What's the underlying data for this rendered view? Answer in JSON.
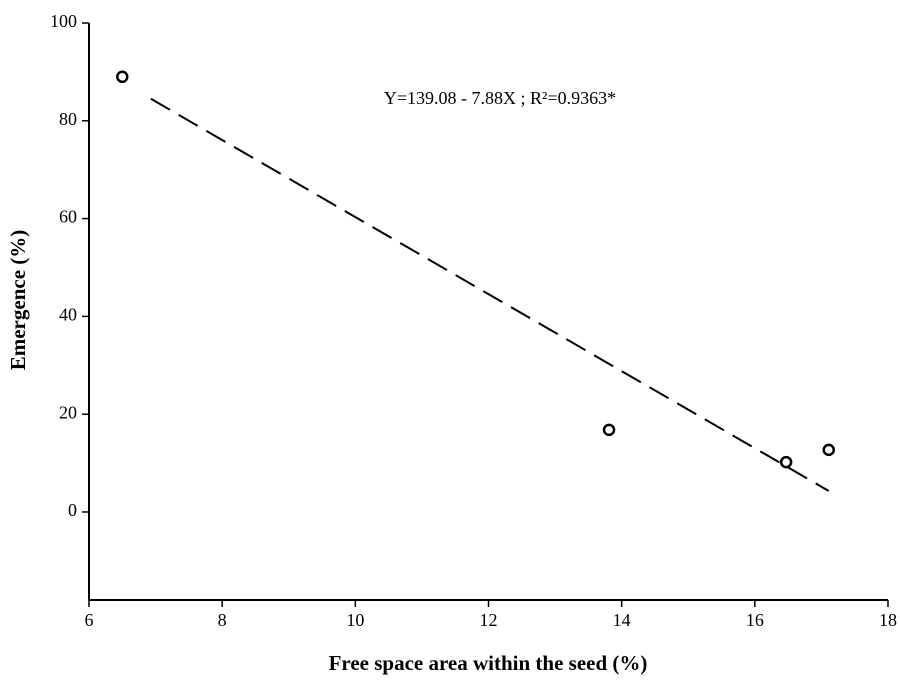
{
  "chart_data": {
    "type": "scatter",
    "xlabel": "Free space area within the seed (%)",
    "ylabel": "Emergence (%)",
    "annotation": "Y=139.08 - 7.88X ; R²=0.9363*",
    "series": [
      {
        "name": "Emergence",
        "color": "#000000",
        "x": [
          6.5,
          13.81,
          16.47,
          17.11
        ],
        "values": [
          89,
          16.8,
          10.2,
          12.7
        ]
      }
    ],
    "trendline": {
      "x": [
        6.93,
        17.11
      ],
      "values": [
        84.5,
        4.3
      ],
      "color": "#000000"
    },
    "xlim": [
      6,
      18
    ],
    "xticks": [
      6,
      8,
      10,
      12,
      14,
      16,
      18
    ],
    "ylim": [
      -18,
      100
    ],
    "yticks": [
      0,
      20,
      40,
      60,
      80,
      100
    ],
    "grid": false
  }
}
